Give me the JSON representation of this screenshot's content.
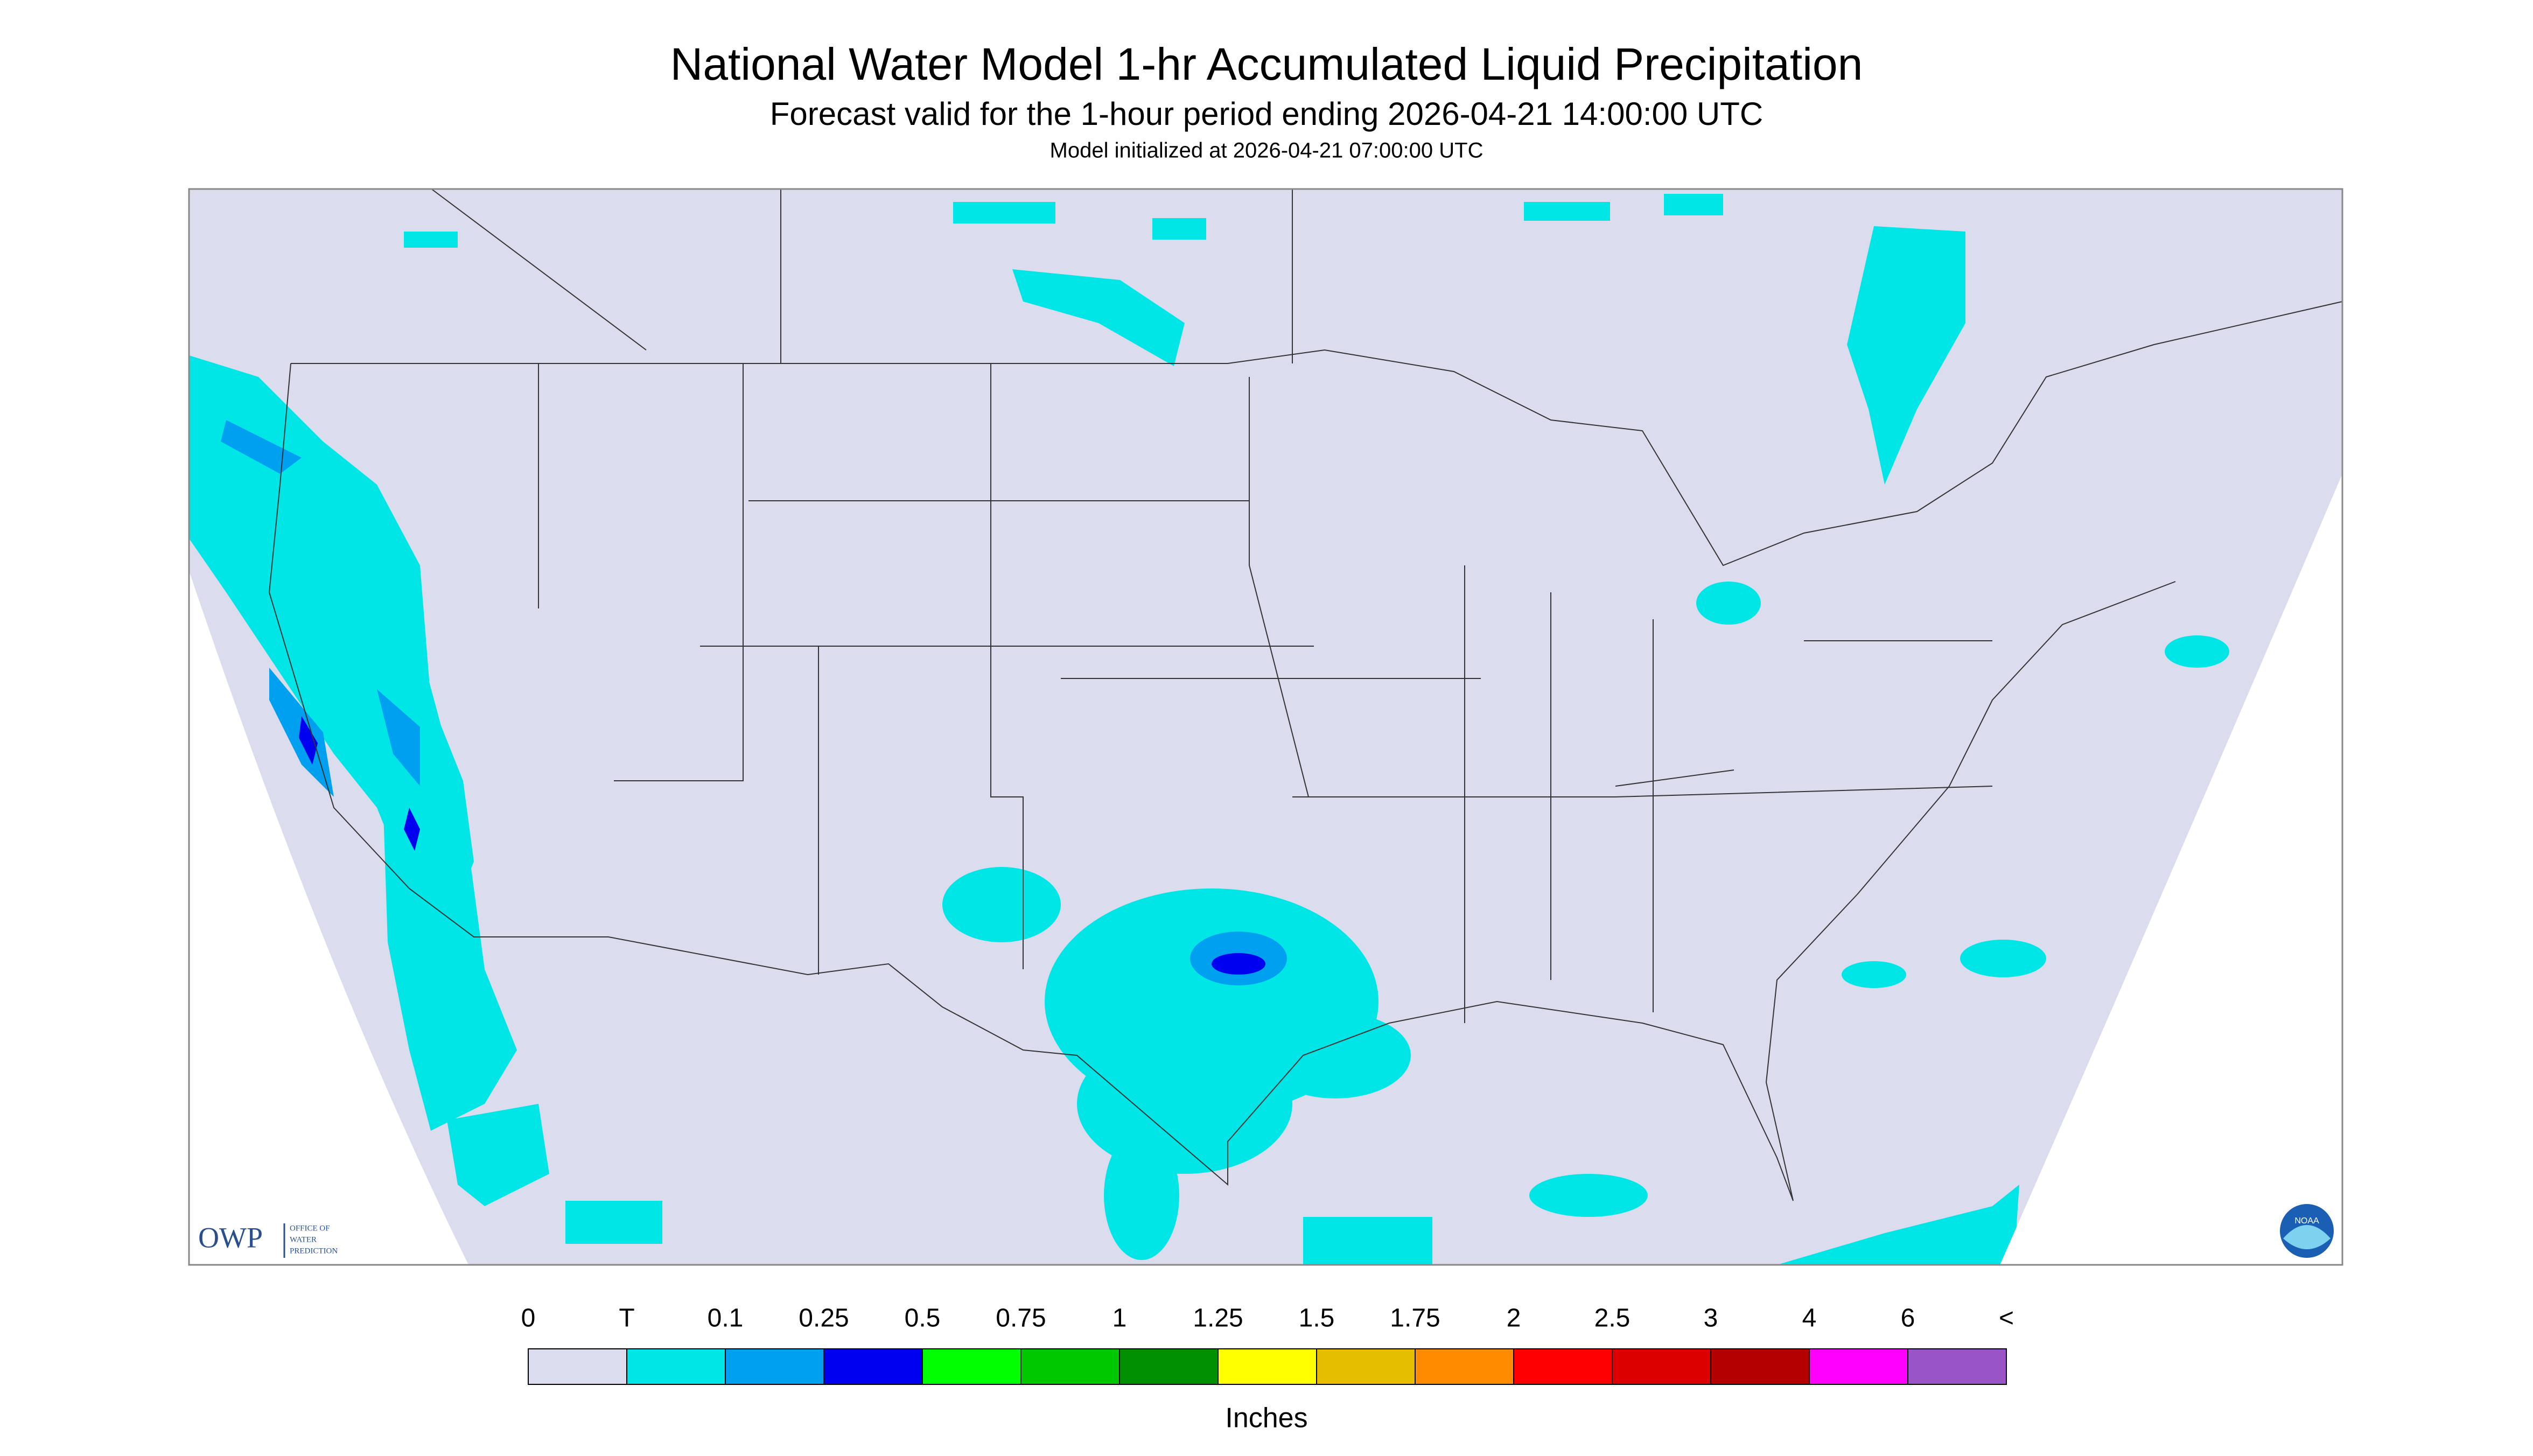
{
  "header": {
    "title": "National Water Model 1-hr Accumulated Liquid Precipitation",
    "subtitle": "Forecast valid for the 1-hour period ending 2026-04-21 14:00:00 UTC",
    "initialized": "Model initialized at 2026-04-21 07:00:00 UTC"
  },
  "logos": {
    "owp": "OWP",
    "owp_lines": [
      "OFFICE OF",
      "WATER",
      "PREDICTION"
    ],
    "noaa": "NOAA"
  },
  "legend": {
    "labels": [
      "0",
      "T",
      "0.1",
      "0.25",
      "0.5",
      "0.75",
      "1",
      "1.25",
      "1.5",
      "1.75",
      "2",
      "2.5",
      "3",
      "4",
      "6",
      "<"
    ],
    "colors": [
      "#dcdcef",
      "#00e6e6",
      "#00a0f0",
      "#0000f0",
      "#00ff00",
      "#00c800",
      "#009000",
      "#ffff00",
      "#e6be00",
      "#ff8c00",
      "#ff0000",
      "#dc0000",
      "#b40000",
      "#ff00ff",
      "#9955c8"
    ],
    "unit": "Inches"
  }
}
